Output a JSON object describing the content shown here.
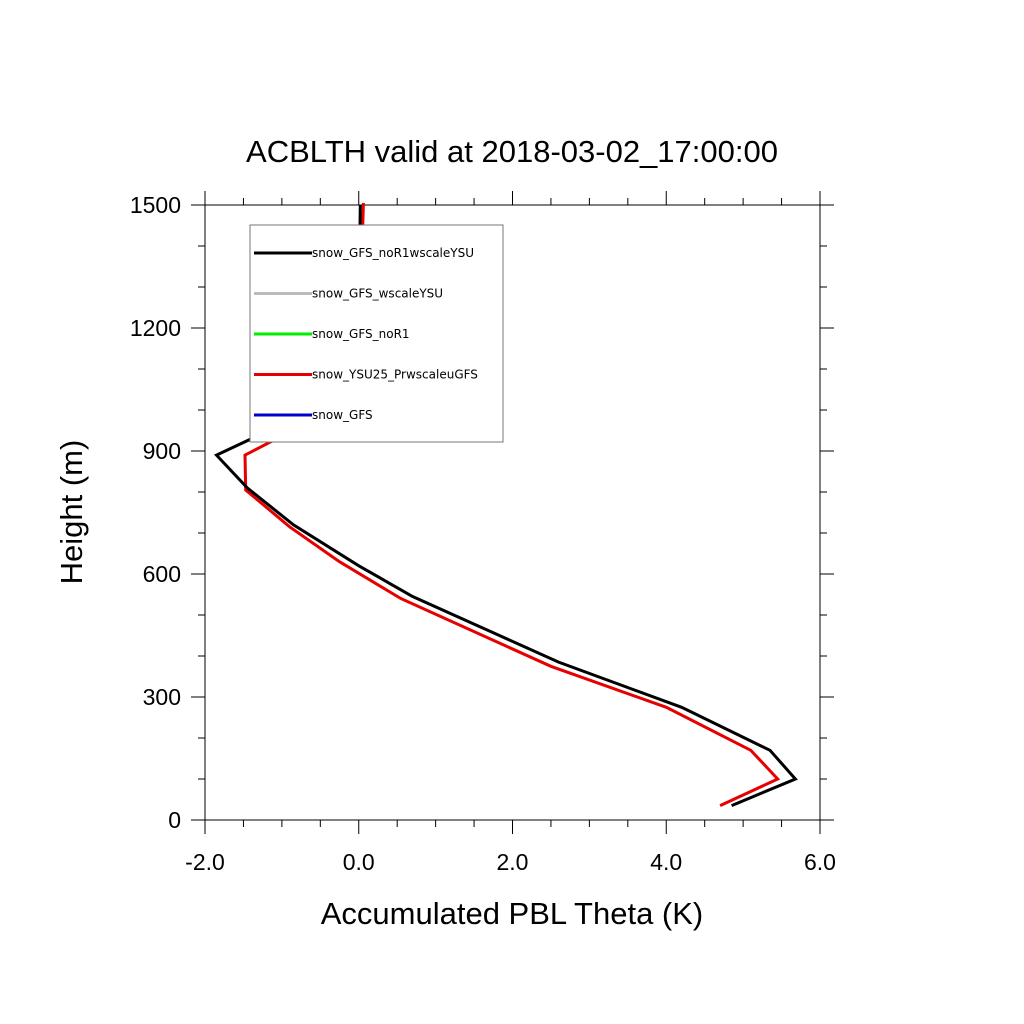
{
  "chart_data": {
    "type": "line",
    "title": "ACBLTH valid at 2018-03-02_17:00:00",
    "xlabel": "Accumulated PBL Theta (K)",
    "ylabel": "Height (m)",
    "xlim": [
      -2.0,
      6.0
    ],
    "ylim": [
      0,
      1500
    ],
    "xticks": [
      -2.0,
      0.0,
      2.0,
      4.0,
      6.0
    ],
    "xtick_labels": [
      "-2.0",
      "0.0",
      "2.0",
      "4.0",
      "6.0"
    ],
    "yticks": [
      0,
      300,
      600,
      900,
      1200,
      1500
    ],
    "ytick_labels": [
      "0",
      "300",
      "600",
      "900",
      "1200",
      "1500"
    ],
    "grid": false,
    "legend_position": "top-left",
    "series": [
      {
        "name": "snow_GFS_noR1wscaleYSU",
        "color": "#000000",
        "points": [
          [
            4.85,
            35
          ],
          [
            5.68,
            100
          ],
          [
            5.35,
            170
          ],
          [
            4.2,
            275
          ],
          [
            2.6,
            385
          ],
          [
            0.7,
            545
          ],
          [
            0.0,
            620
          ],
          [
            -0.85,
            720
          ],
          [
            -1.45,
            810
          ],
          [
            -1.85,
            890
          ],
          [
            -0.6,
            1000
          ],
          [
            -0.12,
            1080
          ],
          [
            0.0,
            1250
          ],
          [
            0.02,
            1500
          ]
        ]
      },
      {
        "name": "snow_GFS_wscaleYSU",
        "color": "#bbbbbb",
        "points": []
      },
      {
        "name": "snow_GFS_noR1",
        "color": "#00ee00",
        "points": []
      },
      {
        "name": "snow_YSU25_PrwscaleuGFS",
        "color": "#e60000",
        "points": [
          [
            4.7,
            35
          ],
          [
            5.45,
            100
          ],
          [
            5.1,
            170
          ],
          [
            4.0,
            275
          ],
          [
            2.5,
            375
          ],
          [
            0.55,
            540
          ],
          [
            -0.25,
            630
          ],
          [
            -0.9,
            715
          ],
          [
            -1.47,
            805
          ],
          [
            -1.48,
            890
          ],
          [
            -0.55,
            980
          ],
          [
            -0.05,
            1080
          ],
          [
            0.02,
            1250
          ],
          [
            0.06,
            1505
          ]
        ]
      },
      {
        "name": "snow_GFS",
        "color": "#0000cc",
        "points": []
      }
    ]
  }
}
